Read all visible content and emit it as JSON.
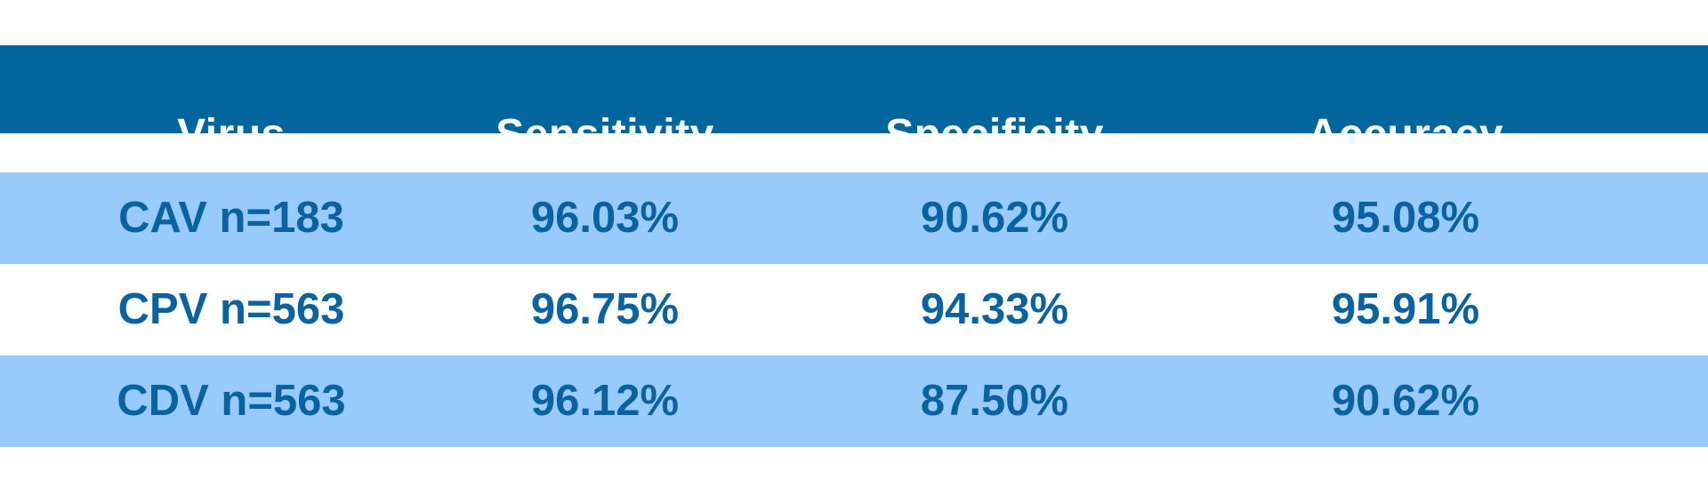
{
  "table": {
    "headers": [
      "Virus",
      "Sensitivity",
      "Specificity",
      "Accuracy"
    ],
    "rows": [
      [
        "CAV n=183",
        "96.03%",
        "90.62%",
        "95.08%"
      ],
      [
        "CPV n=563",
        "96.75%",
        "94.33%",
        "95.91%"
      ],
      [
        "CDV n=563",
        "96.12%",
        "87.50%",
        "90.62%"
      ]
    ]
  },
  "colors": {
    "header_bg": "#02669c",
    "header_text": "#ffffff",
    "row_shade": "#98cafb",
    "row_plain": "#ffffff",
    "cell_text": "#0a63a0"
  }
}
